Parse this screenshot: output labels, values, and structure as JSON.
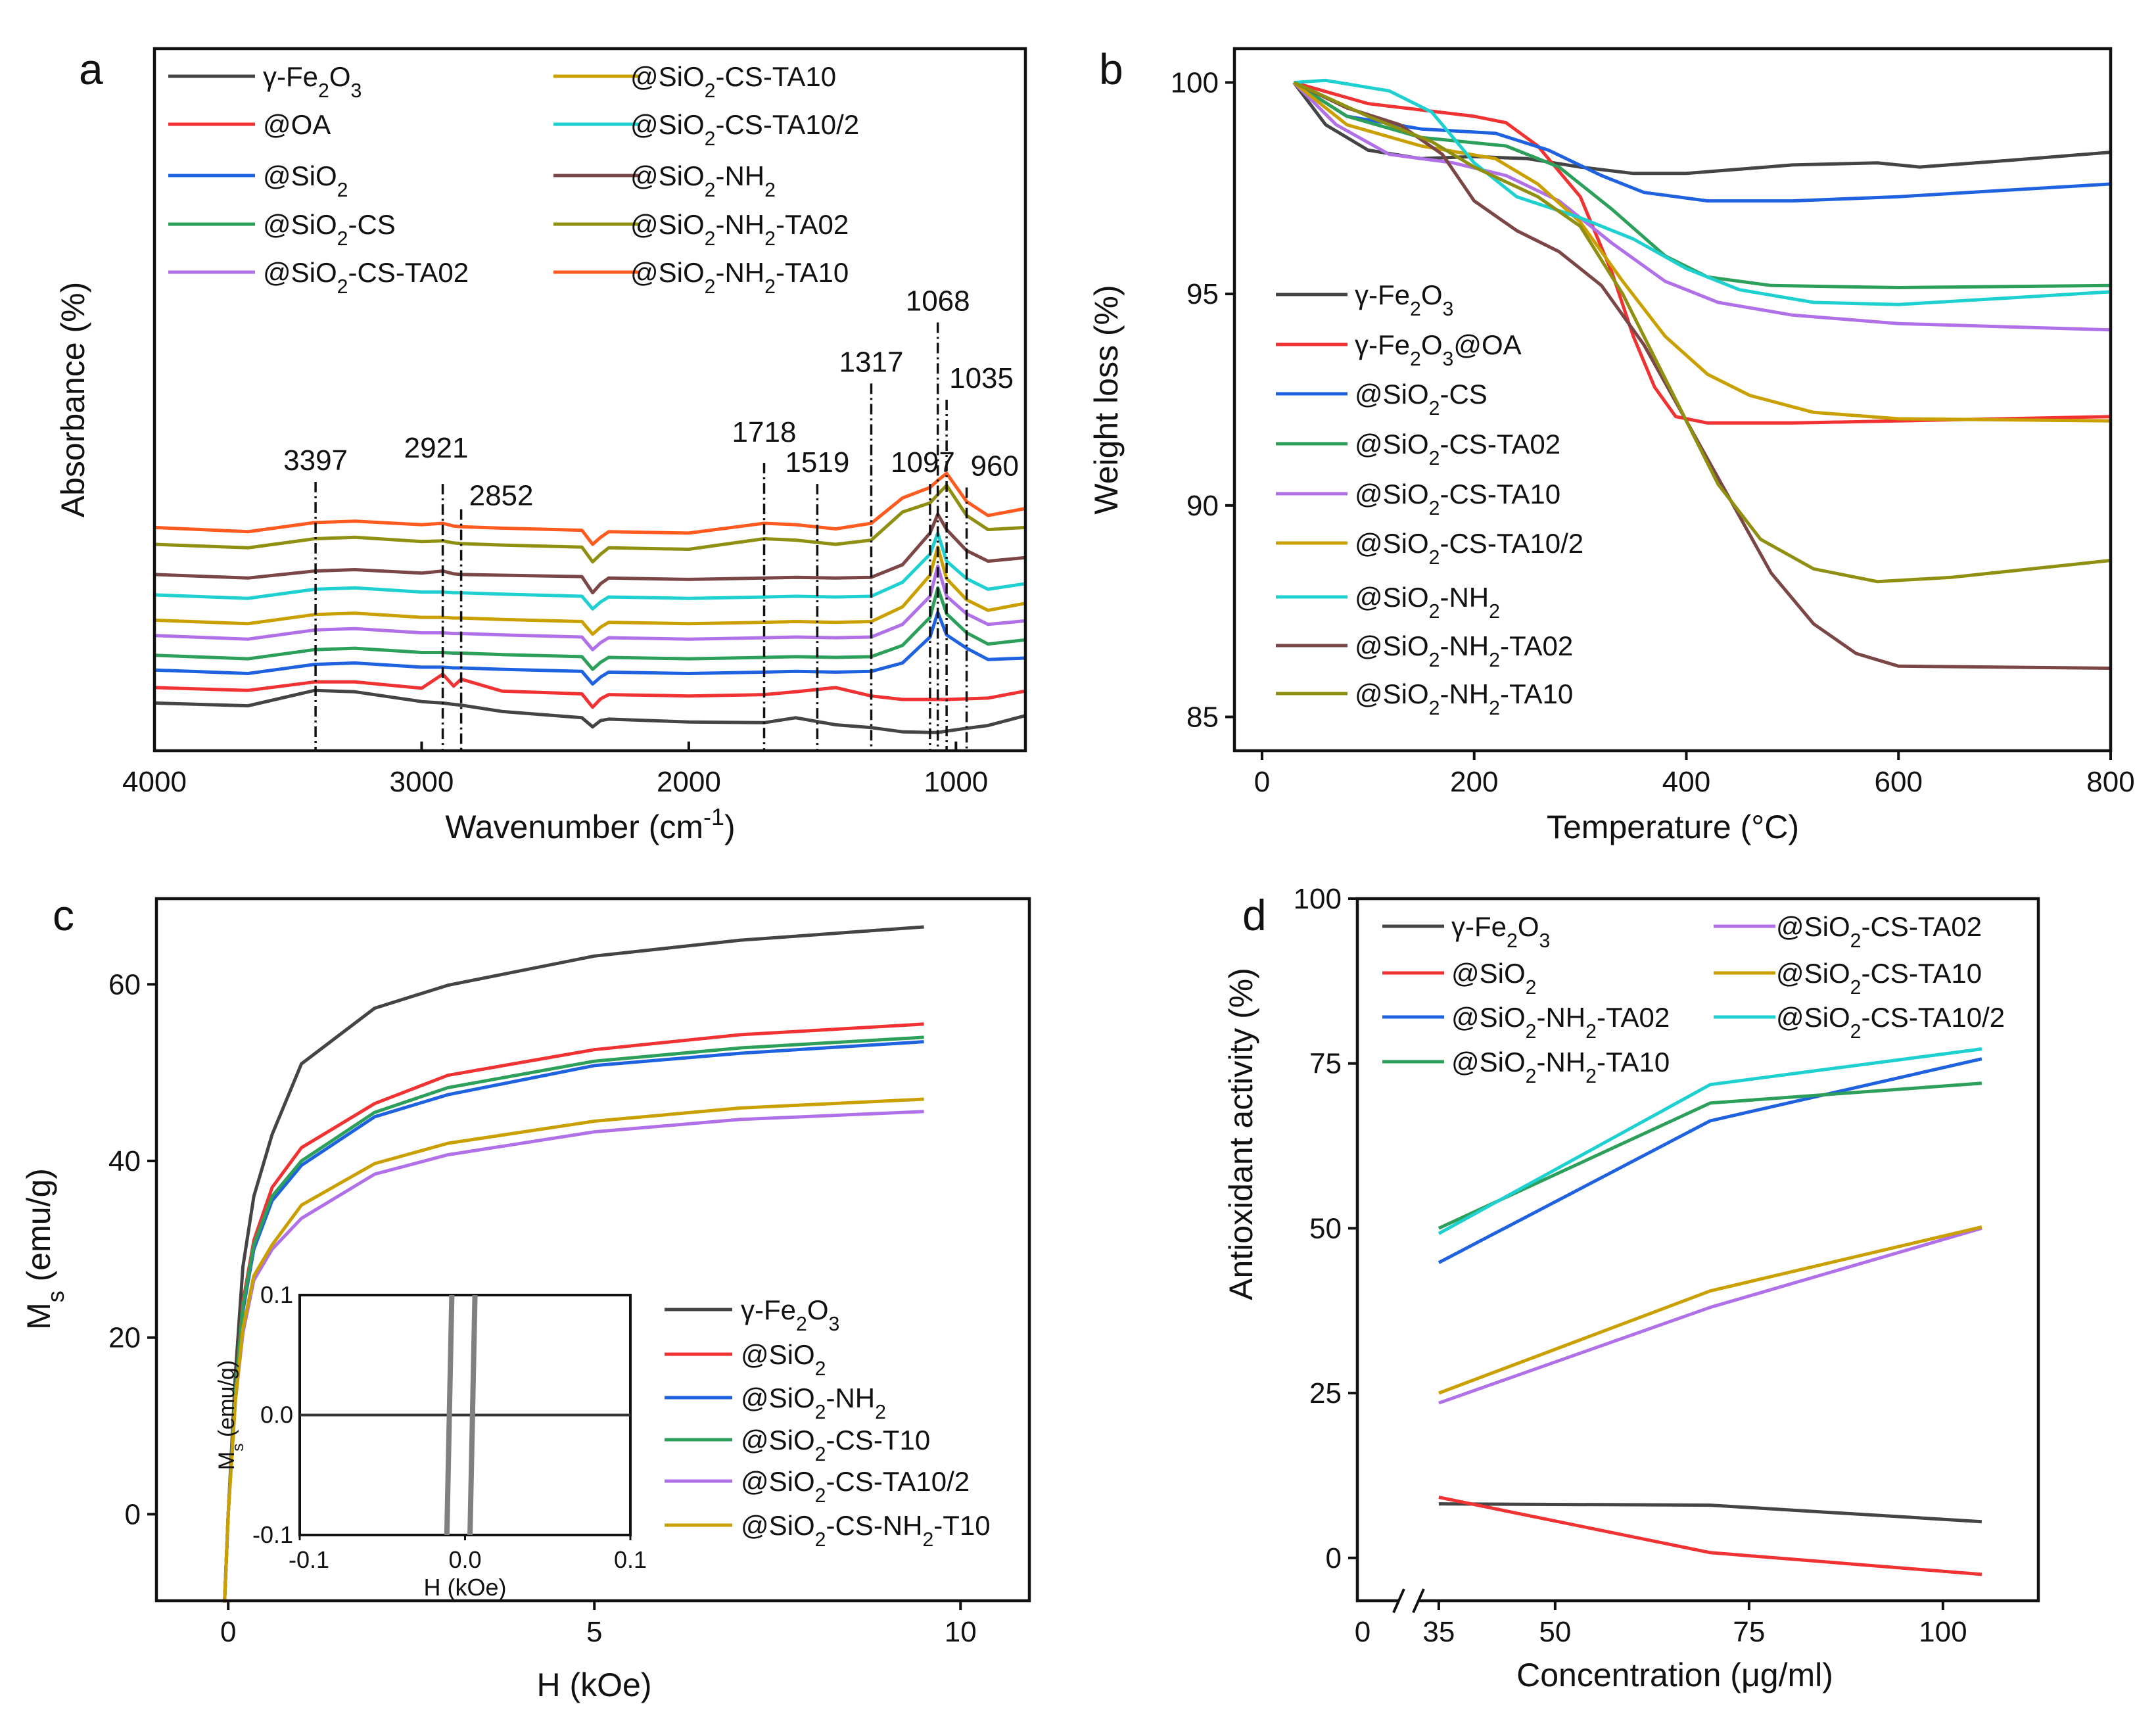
{
  "chart_data": [
    {
      "panel": "a",
      "type": "line",
      "xlabel": "Wavenumber (cm-1)",
      "ylabel": "Absorbance (%)",
      "xlim": [
        4000,
        740
      ],
      "ylim": [
        0,
        100
      ],
      "xticks": [
        4000,
        3000,
        2000,
        1000
      ],
      "yticks": [],
      "grid": false,
      "legend_placement": "top",
      "x": [
        4000,
        3650,
        3400,
        3250,
        3000,
        2921,
        2880,
        2852,
        2700,
        2400,
        2360,
        2330,
        2300,
        2000,
        1718,
        1600,
        1450,
        1317,
        1200,
        1097,
        1068,
        1035,
        960,
        880,
        740
      ],
      "series": [
        {
          "name": "γ-Fe2O3",
          "color": "#444444",
          "values": [
            6.8,
            6.4,
            8.6,
            8.4,
            7,
            6.8,
            6.6,
            6.5,
            5.6,
            4.7,
            3.4,
            4.3,
            4.5,
            4.1,
            4.0,
            4.7,
            3.7,
            3.3,
            2.7,
            2.6,
            2.6,
            2.8,
            3.2,
            3.6,
            5
          ]
        },
        {
          "name": "@OA",
          "color": "#f03232",
          "values": [
            9,
            8.6,
            9.8,
            9.8,
            8.9,
            10.9,
            9.2,
            10.2,
            8.5,
            8.1,
            6.2,
            7.4,
            8,
            7.8,
            8,
            8.4,
            9.0,
            7.8,
            7.3,
            7.3,
            7.3,
            7.3,
            7.4,
            7.5,
            8.5
          ]
        },
        {
          "name": "@SiO2",
          "color": "#1f62e0",
          "values": [
            11.5,
            11,
            12.3,
            12.5,
            11.9,
            11.9,
            11.8,
            11.8,
            11.6,
            11.3,
            9.5,
            10.5,
            11.2,
            11,
            11.2,
            11.3,
            11.2,
            11.3,
            12.5,
            16.2,
            19.7,
            16.5,
            14.6,
            13,
            13.2
          ]
        },
        {
          "name": "@SiO2-CS",
          "color": "#2ca05a",
          "values": [
            13.6,
            13.1,
            14.4,
            14.6,
            14,
            14,
            13.9,
            13.9,
            13.7,
            13.4,
            11.6,
            12.6,
            13.3,
            13.1,
            13.3,
            13.4,
            13.3,
            13.4,
            15,
            19,
            23.2,
            19.5,
            16.8,
            15.2,
            15.8
          ]
        },
        {
          "name": "@SiO2-CS-TA02",
          "color": "#b070e8",
          "values": [
            16.4,
            15.9,
            17.2,
            17.4,
            16.8,
            16.8,
            16.7,
            16.7,
            16.5,
            16.2,
            14.4,
            15.4,
            16.1,
            15.9,
            16.1,
            16.2,
            16.1,
            16.2,
            18,
            22,
            26.3,
            22,
            19.5,
            18,
            18.5
          ]
        },
        {
          "name": "@SiO2-CS-TA10",
          "color": "#c9a000",
          "values": [
            18.6,
            18.1,
            19.4,
            19.6,
            19,
            19,
            18.9,
            18.9,
            18.7,
            18.4,
            16.6,
            17.6,
            18.3,
            18.1,
            18.3,
            18.4,
            18.3,
            18.4,
            20.5,
            25,
            29,
            24.5,
            21.5,
            20,
            21
          ]
        },
        {
          "name": "@SiO2-CS-TA10/2",
          "color": "#1fd0d0",
          "values": [
            22.2,
            21.7,
            23,
            23.2,
            22.6,
            22.6,
            22.5,
            22.5,
            22.3,
            22,
            20.2,
            21.2,
            21.9,
            21.7,
            21.9,
            22,
            21.9,
            22,
            24,
            28,
            31,
            27,
            24.5,
            23,
            23.8
          ]
        },
        {
          "name": "@SiO2-NH2",
          "color": "#7a4646",
          "values": [
            25.1,
            24.6,
            25.6,
            25.8,
            25.3,
            25.6,
            25.2,
            25.1,
            25,
            24.8,
            22.5,
            23.8,
            24.6,
            24.4,
            24.6,
            24.7,
            24.6,
            24.7,
            26.5,
            31,
            33.7,
            31.5,
            28.5,
            27,
            27.5
          ]
        },
        {
          "name": "@SiO2-NH2-TA02",
          "color": "#8f8f12",
          "values": [
            29.4,
            28.9,
            30.2,
            30.4,
            29.8,
            29.9,
            29.6,
            29.5,
            29.3,
            29,
            26.9,
            28,
            28.9,
            28.7,
            30.2,
            30,
            29.4,
            30,
            34,
            35.3,
            36.5,
            37.8,
            33.5,
            31.5,
            31.8
          ]
        },
        {
          "name": "@SiO2-NH2-TA10",
          "color": "#ff5a1f",
          "values": [
            31.8,
            31.2,
            32.5,
            32.7,
            32.2,
            32.4,
            32,
            31.9,
            31.7,
            31.4,
            29.4,
            30.4,
            31.2,
            31.0,
            32.4,
            32.2,
            31.6,
            32.4,
            36,
            37.5,
            38.5,
            39.5,
            35.5,
            33.5,
            34.5
          ]
        }
      ],
      "annotations": [
        {
          "x": 3397,
          "label": "3397",
          "top": 38.3
        },
        {
          "x": 2921,
          "label": "2921",
          "top": 38
        },
        {
          "x": 2852,
          "label": "2852",
          "top": 34.4
        },
        {
          "x": 1718,
          "label": "1718",
          "top": 41
        },
        {
          "x": 1519,
          "label": "1519",
          "top": 38
        },
        {
          "x": 1317,
          "label": "1317",
          "top": 52.3
        },
        {
          "x": 1097,
          "label": "1097",
          "top": 38
        },
        {
          "x": 1068,
          "label": "1068",
          "top": 61
        },
        {
          "x": 1035,
          "label": "1035",
          "top": 50
        },
        {
          "x": 960,
          "label": "960",
          "top": 37.5
        }
      ]
    },
    {
      "panel": "b",
      "type": "line",
      "xlabel": "Temperature (°C)",
      "ylabel": "Weight loss (%)",
      "xlim": [
        -26,
        800
      ],
      "ylim": [
        84.2,
        100.8
      ],
      "xticks": [
        0,
        200,
        400,
        600,
        800
      ],
      "yticks": [
        85,
        90,
        95,
        100
      ],
      "grid": false,
      "legend_placement": "left",
      "series": [
        {
          "name": "γ-Fe2O3",
          "color": "#444444",
          "x": [
            30,
            60,
            100,
            150,
            200,
            250,
            300,
            350,
            400,
            450,
            500,
            580,
            620,
            700,
            800
          ],
          "values": [
            100,
            99,
            98.4,
            98.2,
            98.25,
            98.2,
            98,
            97.85,
            97.85,
            97.95,
            98.05,
            98.1,
            98.0,
            98.15,
            98.35
          ]
        },
        {
          "name": "γ-Fe2O3@OA",
          "color": "#f03232",
          "x": [
            30,
            100,
            200,
            230,
            260,
            300,
            330,
            350,
            370,
            390,
            420,
            500,
            600,
            800
          ],
          "values": [
            100,
            99.5,
            99.2,
            99.05,
            98.5,
            97.3,
            95.5,
            94,
            92.8,
            92.1,
            91.95,
            91.95,
            92.0,
            92.1
          ]
        },
        {
          "name": "@SiO2-CS",
          "color": "#1f62e0",
          "x": [
            30,
            80,
            150,
            220,
            270,
            320,
            360,
            420,
            500,
            600,
            700,
            800
          ],
          "values": [
            100,
            99.2,
            98.9,
            98.8,
            98.4,
            97.8,
            97.4,
            97.2,
            97.2,
            97.3,
            97.45,
            97.6
          ]
        },
        {
          "name": "@SiO2-CS-TA02",
          "color": "#2ca05a",
          "x": [
            30,
            80,
            150,
            230,
            280,
            330,
            380,
            420,
            480,
            600,
            800
          ],
          "values": [
            100,
            99.2,
            98.7,
            98.5,
            98.0,
            97,
            95.9,
            95.4,
            95.2,
            95.15,
            95.2
          ]
        },
        {
          "name": "@SiO2-CS-TA10",
          "color": "#b070e8",
          "x": [
            30,
            70,
            120,
            180,
            230,
            280,
            330,
            380,
            430,
            500,
            600,
            800
          ],
          "values": [
            100,
            99,
            98.3,
            98.1,
            97.8,
            97.2,
            96.2,
            95.3,
            94.8,
            94.5,
            94.3,
            94.15
          ]
        },
        {
          "name": "@SiO2-CS-TA10/2",
          "color": "#c9a000",
          "x": [
            30,
            80,
            150,
            220,
            260,
            300,
            340,
            380,
            420,
            460,
            520,
            600,
            800
          ],
          "values": [
            100,
            99,
            98.5,
            98.2,
            97.6,
            96.7,
            95.3,
            94,
            93.1,
            92.6,
            92.2,
            92.05,
            92.0
          ]
        },
        {
          "name": "@SiO2-NH2",
          "color": "#1fd0d0",
          "x": [
            30,
            60,
            120,
            160,
            200,
            240,
            300,
            350,
            400,
            450,
            520,
            600,
            700,
            800
          ],
          "values": [
            100,
            100.05,
            99.8,
            99.3,
            98.1,
            97.3,
            96.8,
            96.3,
            95.6,
            95.1,
            94.8,
            94.75,
            94.9,
            95.05
          ]
        },
        {
          "name": "@SiO2-NH2-TA02",
          "color": "#7a4646",
          "x": [
            30,
            80,
            130,
            170,
            200,
            240,
            280,
            320,
            360,
            400,
            440,
            480,
            520,
            560,
            600,
            800
          ],
          "values": [
            100,
            99.4,
            99.0,
            98.3,
            97.2,
            96.5,
            96.0,
            95.2,
            93.8,
            92.0,
            90.2,
            88.4,
            87.2,
            86.5,
            86.2,
            86.15
          ]
        },
        {
          "name": "@SiO2-NH2-TA10",
          "color": "#8f8f12",
          "x": [
            30,
            100,
            160,
            200,
            260,
            300,
            340,
            370,
            400,
            430,
            470,
            520,
            580,
            650,
            800
          ],
          "values": [
            100,
            99.2,
            98.6,
            98.0,
            97.3,
            96.6,
            95.0,
            93.5,
            92.0,
            90.5,
            89.2,
            88.5,
            88.2,
            88.3,
            88.7
          ]
        }
      ]
    },
    {
      "panel": "c",
      "type": "line",
      "xlabel": "H (kOe)",
      "ylabel": "Ms (emu/g)",
      "xlim": [
        -0.98,
        10.94
      ],
      "ylim": [
        -9.8,
        69.7
      ],
      "xticks": [
        0,
        5,
        10
      ],
      "yticks": [
        0,
        20,
        40,
        60
      ],
      "grid": false,
      "legend_placement": "bottom-right",
      "x": [
        -0.05,
        0,
        0.1,
        0.2,
        0.35,
        0.6,
        1,
        2,
        3,
        5,
        7,
        9.5
      ],
      "series": [
        {
          "name": "γ-Fe2O3",
          "color": "#444444",
          "values": [
            -10,
            0,
            16,
            28,
            36,
            43,
            51,
            57.3,
            59.9,
            63.2,
            65,
            66.5
          ]
        },
        {
          "name": "@SiO2",
          "color": "#f03232",
          "values": [
            -10,
            0,
            14,
            24,
            31,
            37,
            41.5,
            46.5,
            49.7,
            52.6,
            54.3,
            55.5
          ]
        },
        {
          "name": "@SiO2-NH2",
          "color": "#1f62e0",
          "values": [
            -10,
            0,
            14,
            23,
            30,
            35.5,
            39.5,
            45,
            47.5,
            50.8,
            52.2,
            53.5
          ]
        },
        {
          "name": "@SiO2-CS-T10",
          "color": "#2ca05a",
          "values": [
            -10,
            0,
            14,
            23.5,
            30.5,
            36,
            40,
            45.5,
            48.3,
            51.3,
            52.8,
            54
          ]
        },
        {
          "name": "@SiO2-CS-TA10/2",
          "color": "#b070e8",
          "values": [
            -10,
            0,
            13,
            20.5,
            26.5,
            30,
            33.5,
            38.5,
            40.7,
            43.3,
            44.7,
            45.6
          ]
        },
        {
          "name": "@SiO2-CS-NH2-T10",
          "color": "#c9a000",
          "values": [
            -10,
            0,
            13,
            21,
            27,
            30.5,
            35,
            39.7,
            42,
            44.5,
            46,
            47
          ]
        }
      ],
      "inset": {
        "xlabel": "H (kOe)",
        "ylabel": "Ms (emu/g)",
        "xlim": [
          -0.1,
          0.1
        ],
        "ylim": [
          -0.1,
          0.1
        ],
        "xtick_labels": [
          "-0.1",
          "0.0",
          "0.1"
        ],
        "ytick_labels": [
          "-0.1",
          "0.0",
          "0.1"
        ],
        "xticks": [
          -0.1,
          0.0,
          0.1
        ],
        "yticks": [
          -0.1,
          0.0,
          0.1
        ],
        "color": "#808080",
        "loops": [
          {
            "x": [
              -0.011,
              -0.008
            ],
            "values": [
              -0.1,
              0.1
            ]
          },
          {
            "x": [
              0.003,
              0.006
            ],
            "values": [
              -0.1,
              0.1
            ]
          }
        ]
      }
    },
    {
      "panel": "d",
      "type": "line",
      "xlabel": "Concentration (μg/ml)",
      "ylabel": "Antioxidant activity (%)",
      "xlim": [
        24.5,
        112.3
      ],
      "ylim": [
        -6.5,
        100
      ],
      "xticks": [
        35,
        50,
        75,
        100
      ],
      "x_break_label": "0",
      "yticks": [
        0,
        25,
        50,
        75,
        100
      ],
      "grid": false,
      "legend_placement": "top",
      "x": [
        35,
        70,
        105
      ],
      "series": [
        {
          "name": "γ-Fe2O3",
          "color": "#444444",
          "values": [
            8.2,
            8.0,
            5.5
          ]
        },
        {
          "name": "@SiO2",
          "color": "#f03232",
          "values": [
            9.2,
            0.8,
            -2.5
          ]
        },
        {
          "name": "@SiO2-NH2-TA02",
          "color": "#1f62e0",
          "values": [
            44.8,
            66.3,
            75.7
          ]
        },
        {
          "name": "@SiO2-NH2-TA10",
          "color": "#2ca05a",
          "values": [
            50.0,
            69.0,
            72.0
          ]
        },
        {
          "name": "@SiO2-CS-TA02",
          "color": "#b070e8",
          "values": [
            23.5,
            38.0,
            50.0
          ]
        },
        {
          "name": "@SiO2-CS-TA10",
          "color": "#c9a000",
          "values": [
            25.0,
            40.5,
            50.2
          ]
        },
        {
          "name": "@SiO2-CS-TA10/2",
          "color": "#1fd0d0",
          "values": [
            49.2,
            71.8,
            77.2
          ]
        }
      ]
    }
  ]
}
